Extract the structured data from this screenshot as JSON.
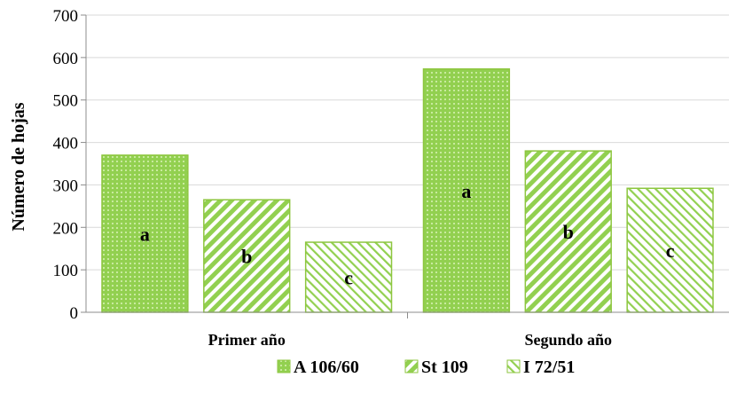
{
  "chart_data": {
    "type": "bar",
    "title": "",
    "xlabel": "",
    "ylabel": "Número de hojas",
    "ylim": [
      0,
      700
    ],
    "yticks": [
      0,
      100,
      200,
      300,
      400,
      500,
      600,
      700
    ],
    "grid": true,
    "legend_position": "bottom",
    "categories": [
      "Primer año",
      "Segundo año"
    ],
    "series": [
      {
        "name": "A 106/60",
        "values": [
          370,
          573
        ],
        "labels": [
          "a",
          "a"
        ],
        "pattern": "dots",
        "color": "#92D050"
      },
      {
        "name": "St 109",
        "values": [
          265,
          380
        ],
        "labels": [
          "b",
          "b"
        ],
        "pattern": "wide-diagonal",
        "color": "#92D050"
      },
      {
        "name": "I 72/51",
        "values": [
          165,
          292
        ],
        "labels": [
          "c",
          "c"
        ],
        "pattern": "light-diagonal",
        "color": "#92D050"
      }
    ]
  }
}
